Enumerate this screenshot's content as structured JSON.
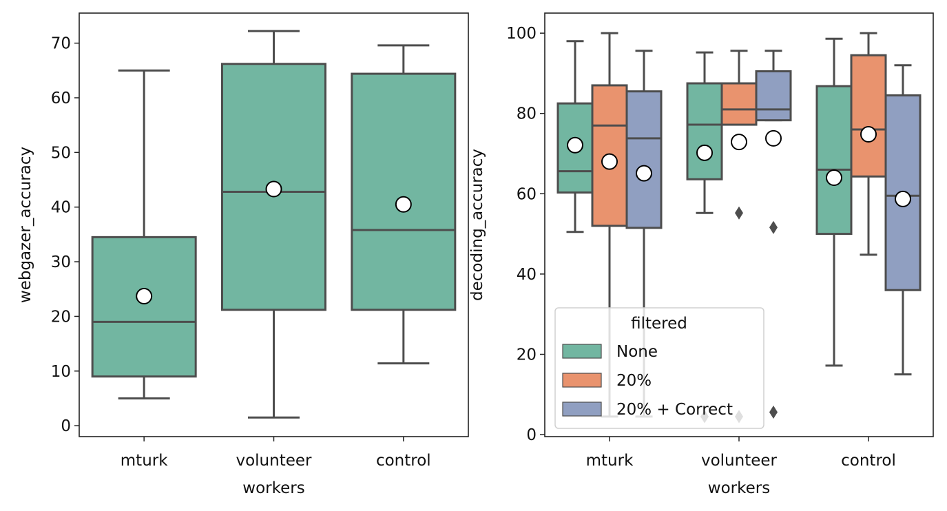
{
  "chart_data": [
    {
      "type": "box",
      "xlabel": "workers",
      "ylabel": "webgazer_accuracy",
      "ylim": [
        -2,
        75.5
      ],
      "yticks": [
        0,
        10,
        20,
        30,
        40,
        50,
        60,
        70
      ],
      "categories": [
        "mturk",
        "volunteer",
        "control"
      ],
      "color": "#72b6a1",
      "series": [
        {
          "name": "",
          "boxes": [
            {
              "category": "mturk",
              "min": 5.0,
              "q1": 9.0,
              "median": 19.0,
              "q3": 34.5,
              "max": 65.0,
              "mean": 23.7,
              "outliers": []
            },
            {
              "category": "volunteer",
              "min": 1.5,
              "q1": 21.2,
              "median": 42.8,
              "q3": 66.2,
              "max": 72.2,
              "mean": 43.3,
              "outliers": []
            },
            {
              "category": "control",
              "min": 11.4,
              "q1": 21.2,
              "median": 35.8,
              "q3": 64.4,
              "max": 69.6,
              "mean": 40.5,
              "outliers": []
            }
          ]
        }
      ]
    },
    {
      "type": "box",
      "xlabel": "workers",
      "ylabel": "decoding_accuracy",
      "ylim": [
        -0.5,
        105
      ],
      "yticks": [
        0,
        20,
        40,
        60,
        80,
        100
      ],
      "categories": [
        "mturk",
        "volunteer",
        "control"
      ],
      "legend": {
        "title": "filtered",
        "position": "lower-left"
      },
      "series": [
        {
          "name": "None",
          "color": "#72b6a1",
          "boxes": [
            {
              "category": "mturk",
              "min": 50.5,
              "q1": 60.3,
              "median": 65.6,
              "q3": 82.5,
              "max": 98.0,
              "mean": 72.1,
              "outliers": []
            },
            {
              "category": "volunteer",
              "min": 55.2,
              "q1": 63.6,
              "median": 77.2,
              "q3": 87.5,
              "max": 95.2,
              "mean": 70.2,
              "outliers": [
                4.5
              ]
            },
            {
              "category": "control",
              "min": 17.2,
              "q1": 50.0,
              "median": 66.0,
              "q3": 86.8,
              "max": 98.6,
              "mean": 64.0,
              "outliers": []
            }
          ]
        },
        {
          "name": "20%",
          "color": "#e9936e",
          "boxes": [
            {
              "category": "mturk",
              "min": 4.5,
              "q1": 52.0,
              "median": 77.0,
              "q3": 87.0,
              "max": 100.0,
              "mean": 68.0,
              "outliers": []
            },
            {
              "category": "volunteer",
              "min": 77.2,
              "q1": 77.2,
              "median": 81.0,
              "q3": 87.5,
              "max": 95.6,
              "mean": 72.9,
              "outliers": [
                55.2,
                4.5
              ]
            },
            {
              "category": "control",
              "min": 44.8,
              "q1": 64.3,
              "median": 76.0,
              "q3": 94.5,
              "max": 100.0,
              "mean": 74.8,
              "outliers": []
            }
          ]
        },
        {
          "name": "20% + Correct",
          "color": "#909fc1",
          "boxes": [
            {
              "category": "mturk",
              "min": 4.5,
              "q1": 51.5,
              "median": 73.8,
              "q3": 85.5,
              "max": 95.6,
              "mean": 65.1,
              "outliers": []
            },
            {
              "category": "volunteer",
              "min": 78.3,
              "q1": 78.3,
              "median": 81.0,
              "q3": 90.5,
              "max": 95.6,
              "mean": 73.8,
              "outliers": [
                51.6,
                5.6
              ]
            },
            {
              "category": "control",
              "min": 15.0,
              "q1": 36.0,
              "median": 59.5,
              "q3": 84.5,
              "max": 92.0,
              "mean": 58.7,
              "outliers": []
            }
          ]
        }
      ]
    }
  ]
}
